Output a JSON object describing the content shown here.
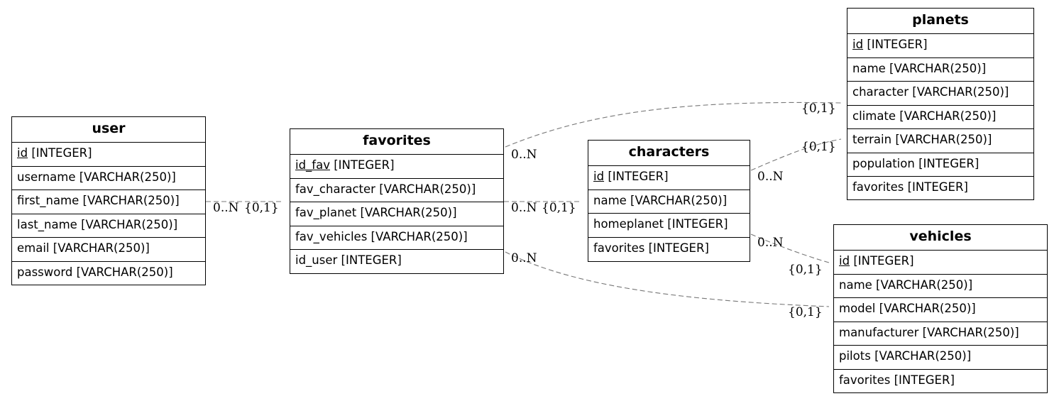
{
  "entities": {
    "user": {
      "name": "user",
      "fields": [
        {
          "name": "id",
          "type": "[INTEGER]",
          "pk": true
        },
        {
          "name": "username",
          "type": "[VARCHAR(250)]"
        },
        {
          "name": "first_name",
          "type": "[VARCHAR(250)]"
        },
        {
          "name": "last_name",
          "type": "[VARCHAR(250)]"
        },
        {
          "name": "email",
          "type": "[VARCHAR(250)]"
        },
        {
          "name": "password",
          "type": "[VARCHAR(250)]"
        }
      ]
    },
    "favorites": {
      "name": "favorites",
      "fields": [
        {
          "name": "id_fav",
          "type": "[INTEGER]",
          "pk": true
        },
        {
          "name": "fav_character",
          "type": "[VARCHAR(250)]"
        },
        {
          "name": "fav_planet",
          "type": "[VARCHAR(250)]"
        },
        {
          "name": "fav_vehicles",
          "type": "[VARCHAR(250)]"
        },
        {
          "name": "id_user",
          "type": "[INTEGER]"
        }
      ]
    },
    "characters": {
      "name": "characters",
      "fields": [
        {
          "name": "id",
          "type": "[INTEGER]",
          "pk": true
        },
        {
          "name": "name",
          "type": "[VARCHAR(250)]"
        },
        {
          "name": "homeplanet",
          "type": "[INTEGER]"
        },
        {
          "name": "favorites",
          "type": "[INTEGER]"
        }
      ]
    },
    "planets": {
      "name": "planets",
      "fields": [
        {
          "name": "id",
          "type": "[INTEGER]",
          "pk": true
        },
        {
          "name": "name",
          "type": "[VARCHAR(250)]"
        },
        {
          "name": "character",
          "type": "[VARCHAR(250)]"
        },
        {
          "name": "climate",
          "type": "[VARCHAR(250)]"
        },
        {
          "name": "terrain",
          "type": "[VARCHAR(250)]"
        },
        {
          "name": "population",
          "type": "[INTEGER]"
        },
        {
          "name": "favorites",
          "type": "[INTEGER]"
        }
      ]
    },
    "vehicles": {
      "name": "vehicles",
      "fields": [
        {
          "name": "id",
          "type": "[INTEGER]",
          "pk": true
        },
        {
          "name": "name",
          "type": "[VARCHAR(250)]"
        },
        {
          "name": "model",
          "type": "[VARCHAR(250)]"
        },
        {
          "name": "manufacturer",
          "type": "[VARCHAR(250)]"
        },
        {
          "name": "pilots",
          "type": "[VARCHAR(250)]"
        },
        {
          "name": "favorites",
          "type": "[INTEGER]"
        }
      ]
    }
  },
  "relationships": [
    {
      "from": "user",
      "to": "favorites",
      "from_card": "0..N",
      "to_card": "{0,1}"
    },
    {
      "from": "favorites",
      "to": "characters",
      "from_card": "0..N",
      "to_card": "{0,1}"
    },
    {
      "from": "favorites",
      "to": "planets",
      "from_card": "0..N",
      "to_card": "{0,1}"
    },
    {
      "from": "favorites",
      "to": "vehicles",
      "from_card": "0..N",
      "to_card": "{0,1}"
    },
    {
      "from": "characters",
      "to": "planets",
      "from_card": "0..N",
      "to_card": "{0,1}"
    },
    {
      "from": "characters",
      "to": "vehicles",
      "from_card": "0..N",
      "to_card": "{0,1}"
    }
  ]
}
